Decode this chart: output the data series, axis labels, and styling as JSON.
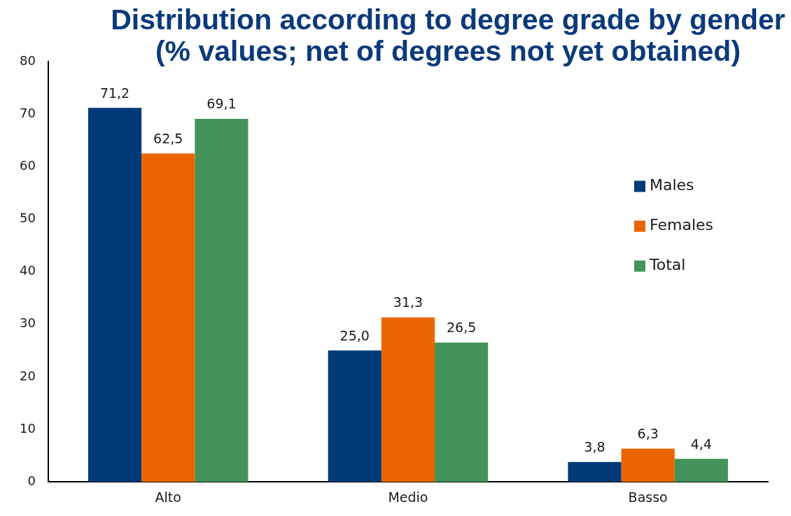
{
  "chart_data": {
    "type": "bar",
    "title": "Distribution according to degree grade by gender (% values; net of degrees not yet obtained)",
    "categories": [
      "Alto",
      "Medio",
      "Basso"
    ],
    "series": [
      {
        "name": "Males",
        "color": "#003a78",
        "values": [
          71.2,
          25.0,
          3.8
        ],
        "value_labels": [
          "71,2",
          "25,0",
          "3,8"
        ]
      },
      {
        "name": "Females",
        "color": "#ec6500",
        "values": [
          62.5,
          31.3,
          6.3
        ],
        "value_labels": [
          "62,5",
          "31,3",
          "6,3"
        ]
      },
      {
        "name": "Total",
        "color": "#42935c",
        "values": [
          69.1,
          26.5,
          4.4
        ],
        "value_labels": [
          "69,1",
          "26,5",
          "4,4"
        ]
      }
    ],
    "ylim": [
      0,
      80
    ],
    "yticks": [
      0,
      10,
      20,
      30,
      40,
      50,
      60,
      70,
      80
    ],
    "legend": "right"
  }
}
